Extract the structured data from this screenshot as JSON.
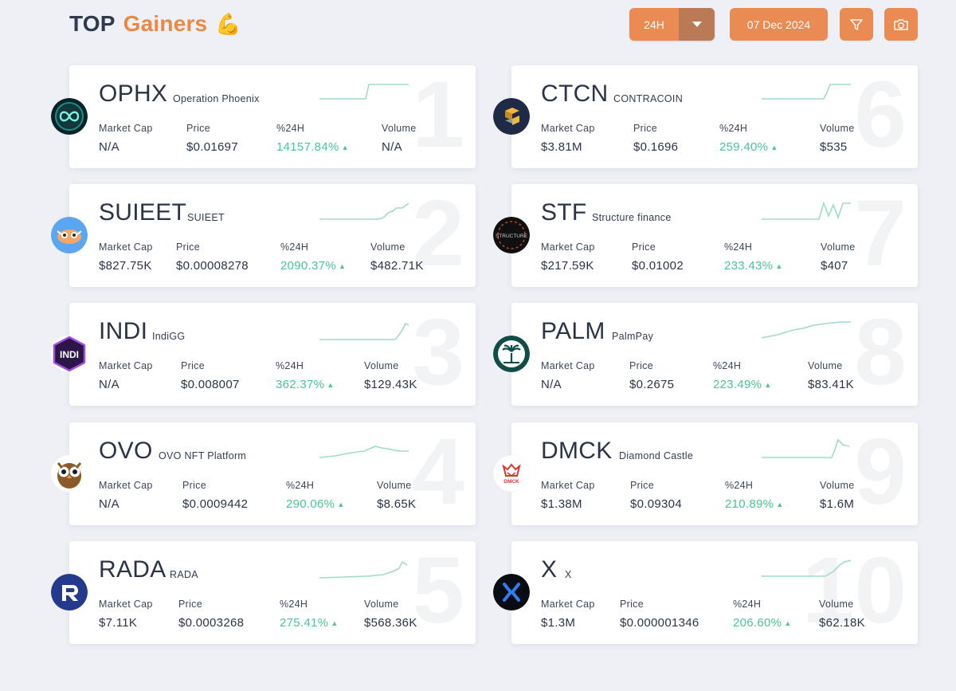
{
  "header": {
    "title_part1": "TOP",
    "title_part2": "Gainers",
    "title_emoji": "💪",
    "timeframe": "24H",
    "date": "07 Dec 2024",
    "filter_icon": "filter-icon",
    "camera_icon": "camera-icon"
  },
  "labels": {
    "market_cap": "Market Cap",
    "price": "Price",
    "change": "%24H",
    "volume": "Volume"
  },
  "colors": {
    "accent": "#e98b52",
    "accent_dark": "#b97a55",
    "positive": "#48c694",
    "sparkline": "#9fdcc6"
  },
  "gainers": [
    {
      "rank": "1",
      "symbol": "OPHX",
      "name": "Operation Phoenix",
      "market_cap": "N/A",
      "price": "$0.01697",
      "change": "14157.84%",
      "volume": "N/A",
      "logo": "ophx-logo"
    },
    {
      "rank": "2",
      "symbol": "SUIEET",
      "name": "SUIEET",
      "market_cap": "$827.75K",
      "price": "$0.00008278",
      "change": "2090.37%",
      "volume": "$482.71K",
      "logo": "suieet-logo"
    },
    {
      "rank": "3",
      "symbol": "INDI",
      "name": "IndiGG",
      "market_cap": "N/A",
      "price": "$0.008007",
      "change": "362.37%",
      "volume": "$129.43K",
      "logo": "indi-logo"
    },
    {
      "rank": "4",
      "symbol": "OVO",
      "name": "OVO NFT Platform",
      "market_cap": "N/A",
      "price": "$0.0009442",
      "change": "290.06%",
      "volume": "$8.65K",
      "logo": "ovo-owl-logo"
    },
    {
      "rank": "5",
      "symbol": "RADA",
      "name": "RADA",
      "market_cap": "$7.11K",
      "price": "$0.0003268",
      "change": "275.41%",
      "volume": "$568.36K",
      "logo": "rada-logo"
    },
    {
      "rank": "6",
      "symbol": "CTCN",
      "name": "CONTRACOIN",
      "market_cap": "$3.81M",
      "price": "$0.1696",
      "change": "259.40%",
      "volume": "$535",
      "logo": "ctcn-logo"
    },
    {
      "rank": "7",
      "symbol": "STF",
      "name": "Structure finance",
      "market_cap": "$217.59K",
      "price": "$0.01002",
      "change": "233.43%",
      "volume": "$407",
      "logo": "stf-logo"
    },
    {
      "rank": "8",
      "symbol": "PALM",
      "name": "PalmPay",
      "market_cap": "N/A",
      "price": "$0.2675",
      "change": "223.49%",
      "volume": "$83.41K",
      "logo": "palm-logo"
    },
    {
      "rank": "9",
      "symbol": "DMCK",
      "name": "Diamond Castle",
      "market_cap": "$1.38M",
      "price": "$0.09304",
      "change": "210.89%",
      "volume": "$1.6M",
      "logo": "dmck-logo"
    },
    {
      "rank": "10",
      "symbol": "X",
      "name": "X",
      "market_cap": "$1.3M",
      "price": "$0.000001346",
      "change": "206.60%",
      "volume": "$62.18K",
      "logo": "x-logo"
    }
  ]
}
